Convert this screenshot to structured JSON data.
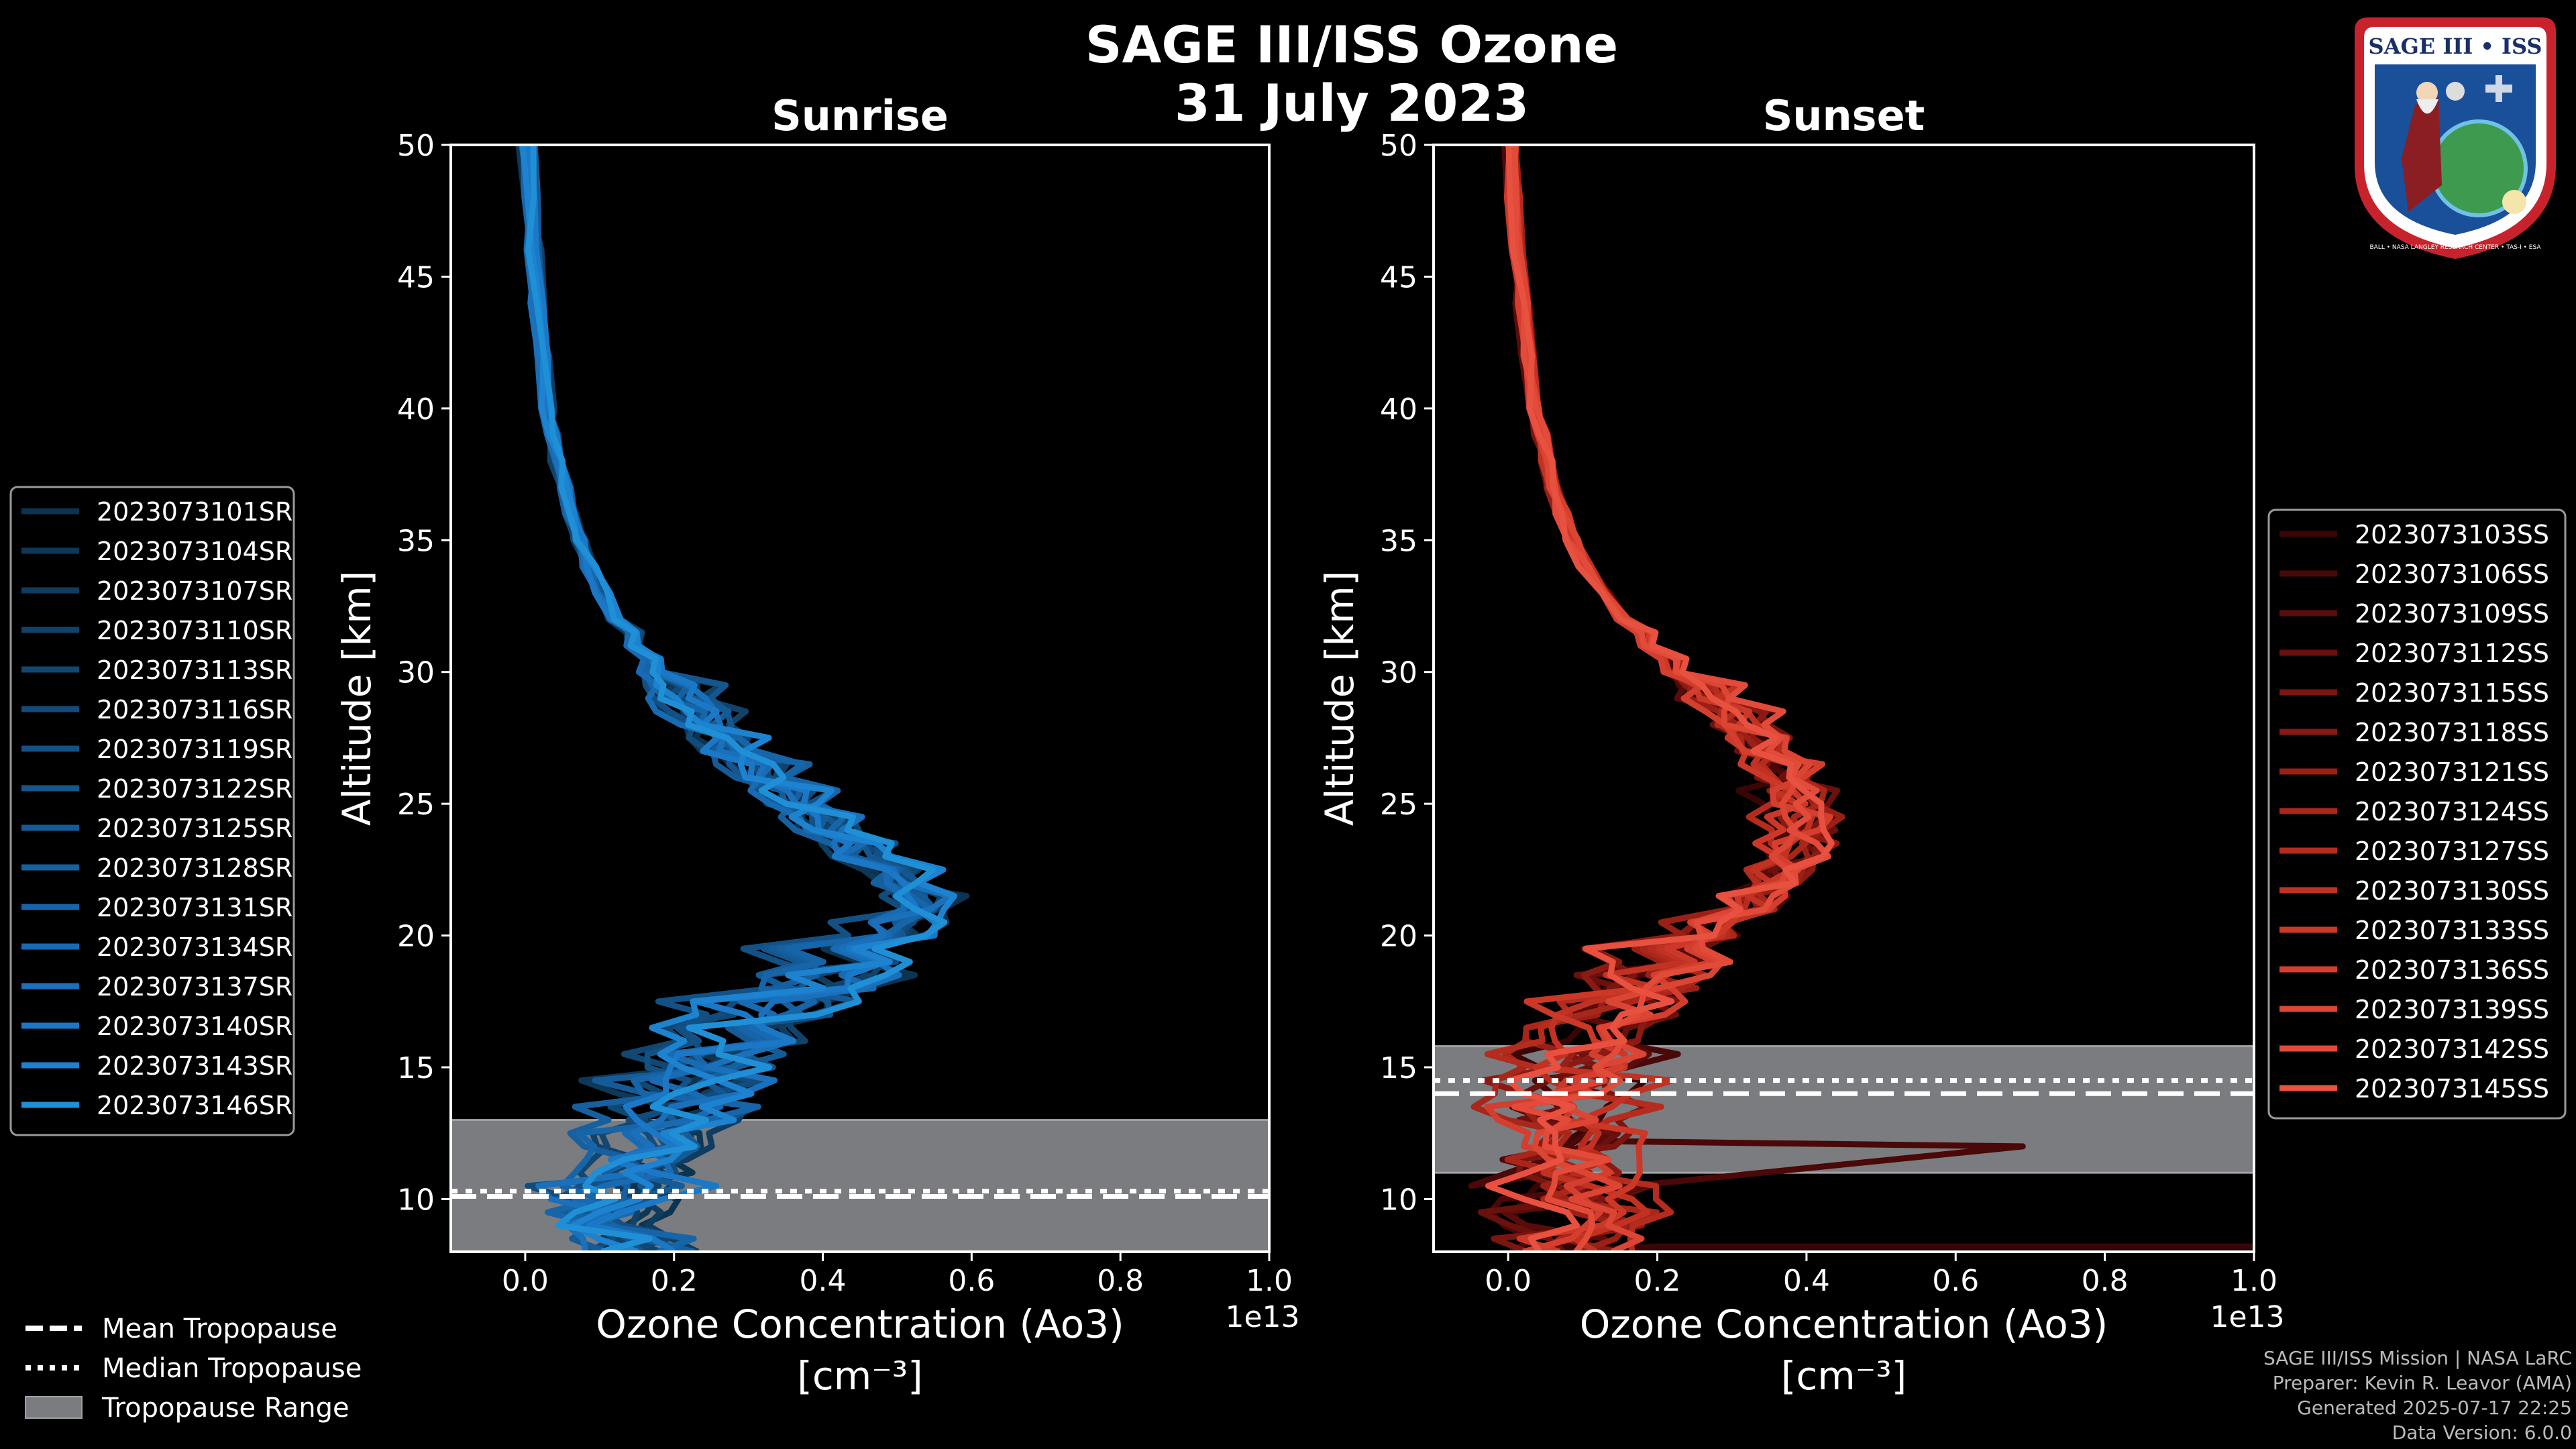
{
  "title": {
    "line1": "SAGE III/ISS Ozone",
    "line2": "31 July 2023"
  },
  "logo": {
    "text": "SAGE III • ISS",
    "ring_text": "BALL • NASA LANGLEY RESEARCH CENTER • TAS-I • ESA"
  },
  "footer": {
    "lines": [
      "SAGE III/ISS Mission | NASA LaRC",
      "Preparer: Kevin R. Leavor (AMA)",
      "Generated 2025-07-17 22:25",
      "Data Version: 6.0.0"
    ]
  },
  "tropopause_legend": [
    {
      "label": "Mean Tropopause",
      "style": "dashed"
    },
    {
      "label": "Median Tropopause",
      "style": "dotted"
    },
    {
      "label": "Tropopause Range",
      "style": "patch"
    }
  ],
  "colors": {
    "sunrise": "#1f8fd6",
    "sunset": "#e8503f",
    "range": "#7a7c80",
    "background": "#000000"
  },
  "chart_data": [
    {
      "type": "line",
      "title": "Sunrise",
      "xlabel": "Ozone Concentration (Ao3)",
      "xunit": "[cm⁻³]",
      "x_offset_label": "1e13",
      "ylabel": "Altitude [km]",
      "xlim": [
        -0.1,
        1.0
      ],
      "ylim": [
        8,
        50
      ],
      "xticks": [
        "0.0",
        "0.2",
        "0.4",
        "0.6",
        "0.8",
        "1.0"
      ],
      "yticks": [
        "10",
        "15",
        "20",
        "25",
        "30",
        "35",
        "40",
        "45",
        "50"
      ],
      "tropopause": {
        "mean": 10.1,
        "median": 10.3,
        "range": [
          8,
          13
        ]
      },
      "altitude_grid": [
        8,
        9,
        10,
        11,
        12,
        13,
        14,
        15,
        16,
        17,
        18,
        19,
        20,
        21,
        22,
        23,
        24,
        25,
        26,
        27,
        28,
        29,
        30,
        31,
        32,
        33,
        34,
        35,
        36,
        37,
        38,
        39,
        40,
        42,
        44,
        46,
        48,
        50
      ],
      "mean_profile": [
        0.18,
        0.15,
        0.14,
        0.16,
        0.19,
        0.22,
        0.25,
        0.29,
        0.34,
        0.39,
        0.45,
        0.51,
        0.58,
        0.6,
        0.57,
        0.52,
        0.47,
        0.42,
        0.37,
        0.32,
        0.28,
        0.24,
        0.2,
        0.17,
        0.14,
        0.12,
        0.1,
        0.085,
        0.07,
        0.06,
        0.05,
        0.043,
        0.037,
        0.028,
        0.02,
        0.014,
        0.008,
        0.002
      ],
      "series_names": [
        "2023073101SR",
        "2023073104SR",
        "2023073107SR",
        "2023073110SR",
        "2023073113SR",
        "2023073116SR",
        "2023073119SR",
        "2023073122SR",
        "2023073125SR",
        "2023073128SR",
        "2023073131SR",
        "2023073134SR",
        "2023073137SR",
        "2023073140SR",
        "2023073143SR",
        "2023073146SR"
      ],
      "series_colors": [
        "#0c3350",
        "#0d3858",
        "#0f3d61",
        "#10426a",
        "#114773",
        "#124c7c",
        "#135185",
        "#14568e",
        "#155b97",
        "#1660a0",
        "#1765a9",
        "#186ab2",
        "#1a70bb",
        "#1b78c6",
        "#1d82cf",
        "#1f8fd6"
      ]
    },
    {
      "type": "line",
      "title": "Sunset",
      "xlabel": "Ozone Concentration (Ao3)",
      "xunit": "[cm⁻³]",
      "x_offset_label": "1e13",
      "ylabel": "Altitude [km]",
      "xlim": [
        -0.1,
        1.0
      ],
      "ylim": [
        8,
        50
      ],
      "xticks": [
        "0.0",
        "0.2",
        "0.4",
        "0.6",
        "0.8",
        "1.0"
      ],
      "yticks": [
        "10",
        "15",
        "20",
        "25",
        "30",
        "35",
        "40",
        "45",
        "50"
      ],
      "tropopause": {
        "mean": 14.0,
        "median": 14.5,
        "range": [
          11,
          15.8
        ]
      },
      "altitude_grid": [
        8,
        9,
        10,
        11,
        12,
        13,
        14,
        15,
        16,
        17,
        18,
        19,
        20,
        21,
        22,
        23,
        24,
        25,
        26,
        27,
        28,
        29,
        30,
        31,
        32,
        33,
        34,
        35,
        36,
        37,
        38,
        39,
        40,
        42,
        44,
        46,
        48,
        50
      ],
      "mean_profile": [
        0.1,
        0.1,
        0.11,
        0.1,
        0.1,
        0.09,
        0.09,
        0.1,
        0.12,
        0.16,
        0.21,
        0.26,
        0.31,
        0.37,
        0.42,
        0.45,
        0.46,
        0.45,
        0.43,
        0.4,
        0.36,
        0.31,
        0.26,
        0.22,
        0.18,
        0.15,
        0.12,
        0.1,
        0.085,
        0.07,
        0.06,
        0.05,
        0.042,
        0.032,
        0.024,
        0.016,
        0.01,
        0.006
      ],
      "spike_values": [
        {
          "altitude": 12.0,
          "value": 0.69
        },
        {
          "altitude": 8.2,
          "value": 1.0
        }
      ],
      "series_names": [
        "2023073103SS",
        "2023073106SS",
        "2023073109SS",
        "2023073112SS",
        "2023073115SS",
        "2023073118SS",
        "2023073121SS",
        "2023073124SS",
        "2023073127SS",
        "2023073130SS",
        "2023073133SS",
        "2023073136SS",
        "2023073139SS",
        "2023073142SS",
        "2023073145SS"
      ],
      "series_colors": [
        "#3a0505",
        "#4a0808",
        "#5a0c0a",
        "#6a100d",
        "#7a1510",
        "#8a1a13",
        "#9a2016",
        "#a8261a",
        "#b52c1e",
        "#c13223",
        "#cb3828",
        "#d43e2e",
        "#dc4434",
        "#e24a39",
        "#e8503f"
      ]
    }
  ]
}
